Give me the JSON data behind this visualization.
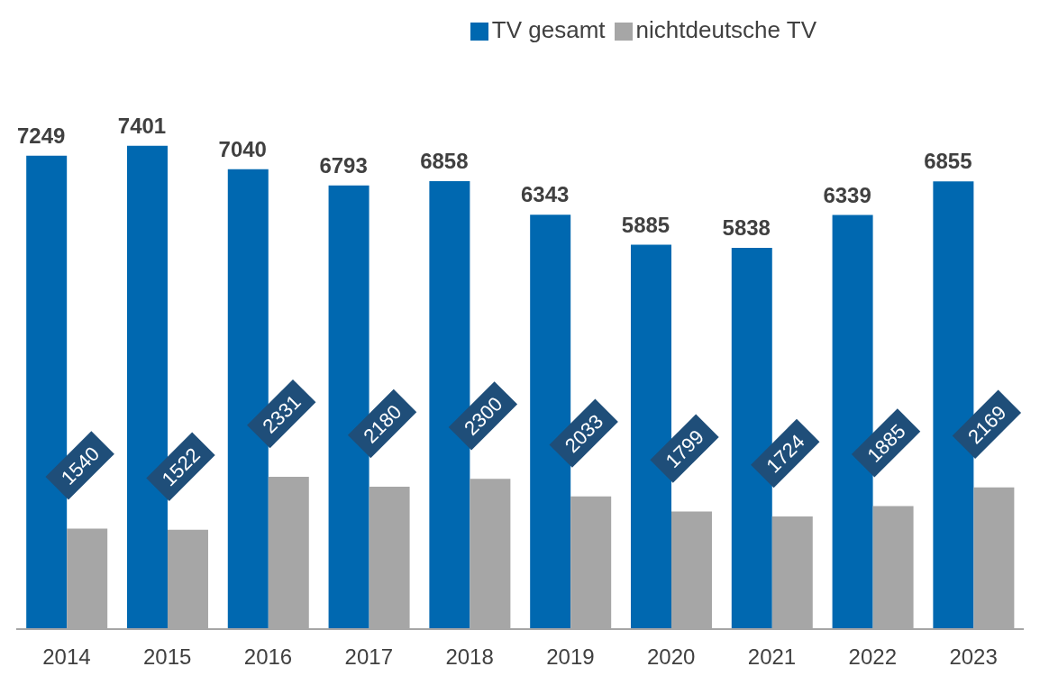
{
  "chart_data": {
    "type": "bar",
    "categories": [
      "2014",
      "2015",
      "2016",
      "2017",
      "2018",
      "2019",
      "2020",
      "2021",
      "2022",
      "2023"
    ],
    "series": [
      {
        "name": "TV gesamt",
        "color": "#0068b0",
        "values": [
          7249,
          7401,
          7040,
          6793,
          6858,
          6343,
          5885,
          5838,
          6339,
          6855
        ]
      },
      {
        "name": "nichtdeutsche TV",
        "color": "#a6a6a6",
        "values": [
          1540,
          1522,
          2331,
          2180,
          2300,
          2033,
          1799,
          1724,
          1885,
          2169
        ]
      }
    ],
    "data_labels": true,
    "legend": "top",
    "grid": false
  }
}
